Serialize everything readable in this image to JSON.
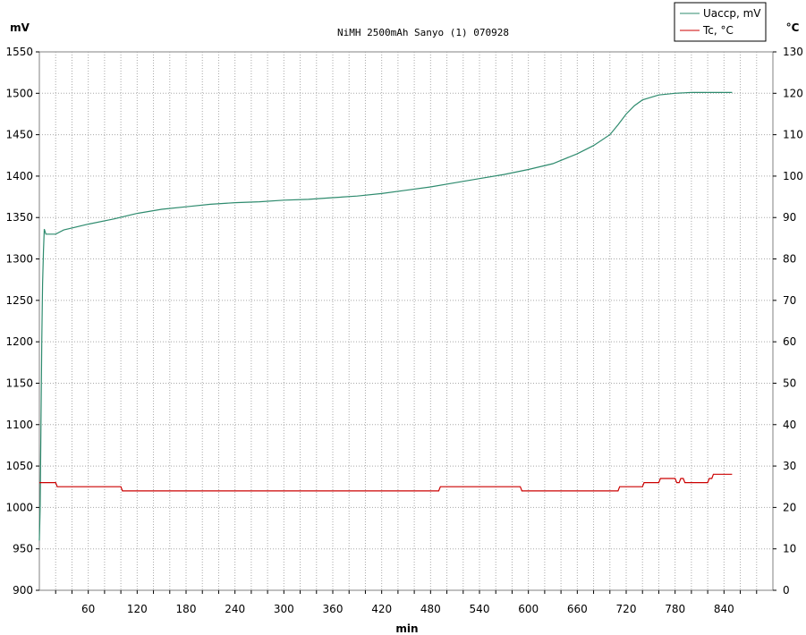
{
  "chart_data": {
    "type": "line",
    "title": "NiMH 2500mAh Sanyo (1) 070928",
    "xlabel": "min",
    "ylabel_left": "mV",
    "ylabel_right": "°C",
    "xlim": [
      0,
      900
    ],
    "x_ticks": [
      60,
      120,
      180,
      240,
      300,
      360,
      420,
      480,
      540,
      600,
      660,
      720,
      780,
      840
    ],
    "ylim_left": [
      900,
      1550
    ],
    "y_ticks_left": [
      900,
      950,
      1000,
      1050,
      1100,
      1150,
      1200,
      1250,
      1300,
      1350,
      1400,
      1450,
      1500,
      1550
    ],
    "ylim_right": [
      0,
      130
    ],
    "y_ticks_right": [
      0,
      10,
      20,
      30,
      40,
      50,
      60,
      70,
      80,
      90,
      100,
      110,
      120,
      130
    ],
    "grid": true,
    "legend_position": "top-right",
    "series": [
      {
        "name": "Uaccp, mV",
        "axis": "left",
        "color": "#2e8b6e",
        "x": [
          0,
          1,
          2,
          3,
          4,
          5,
          6,
          8,
          20,
          30,
          60,
          90,
          120,
          150,
          180,
          210,
          240,
          270,
          300,
          330,
          360,
          390,
          420,
          450,
          480,
          510,
          540,
          570,
          600,
          630,
          660,
          680,
          700,
          710,
          720,
          730,
          740,
          760,
          780,
          800,
          820,
          850
        ],
        "values": [
          960,
          1000,
          1100,
          1200,
          1270,
          1310,
          1336,
          1330,
          1330,
          1335,
          1342,
          1348,
          1355,
          1360,
          1363,
          1366,
          1368,
          1369,
          1371,
          1372,
          1374,
          1376,
          1379,
          1383,
          1387,
          1392,
          1397,
          1402,
          1408,
          1415,
          1427,
          1437,
          1450,
          1462,
          1475,
          1485,
          1492,
          1498,
          1500,
          1501,
          1501,
          1501
        ]
      },
      {
        "name": "Tc, °C",
        "axis": "right",
        "color": "#cc0000",
        "x": [
          0,
          20,
          22,
          100,
          102,
          490,
          492,
          590,
          592,
          710,
          712,
          740,
          742,
          760,
          762,
          780,
          782,
          785,
          787,
          790,
          792,
          820,
          822,
          825,
          827,
          830,
          832,
          850
        ],
        "values": [
          26,
          26,
          25,
          25,
          24,
          24,
          25,
          25,
          24,
          24,
          25,
          25,
          26,
          26,
          27,
          27,
          26,
          26,
          27,
          27,
          26,
          26,
          27,
          27,
          28,
          28,
          28,
          28
        ]
      }
    ]
  }
}
